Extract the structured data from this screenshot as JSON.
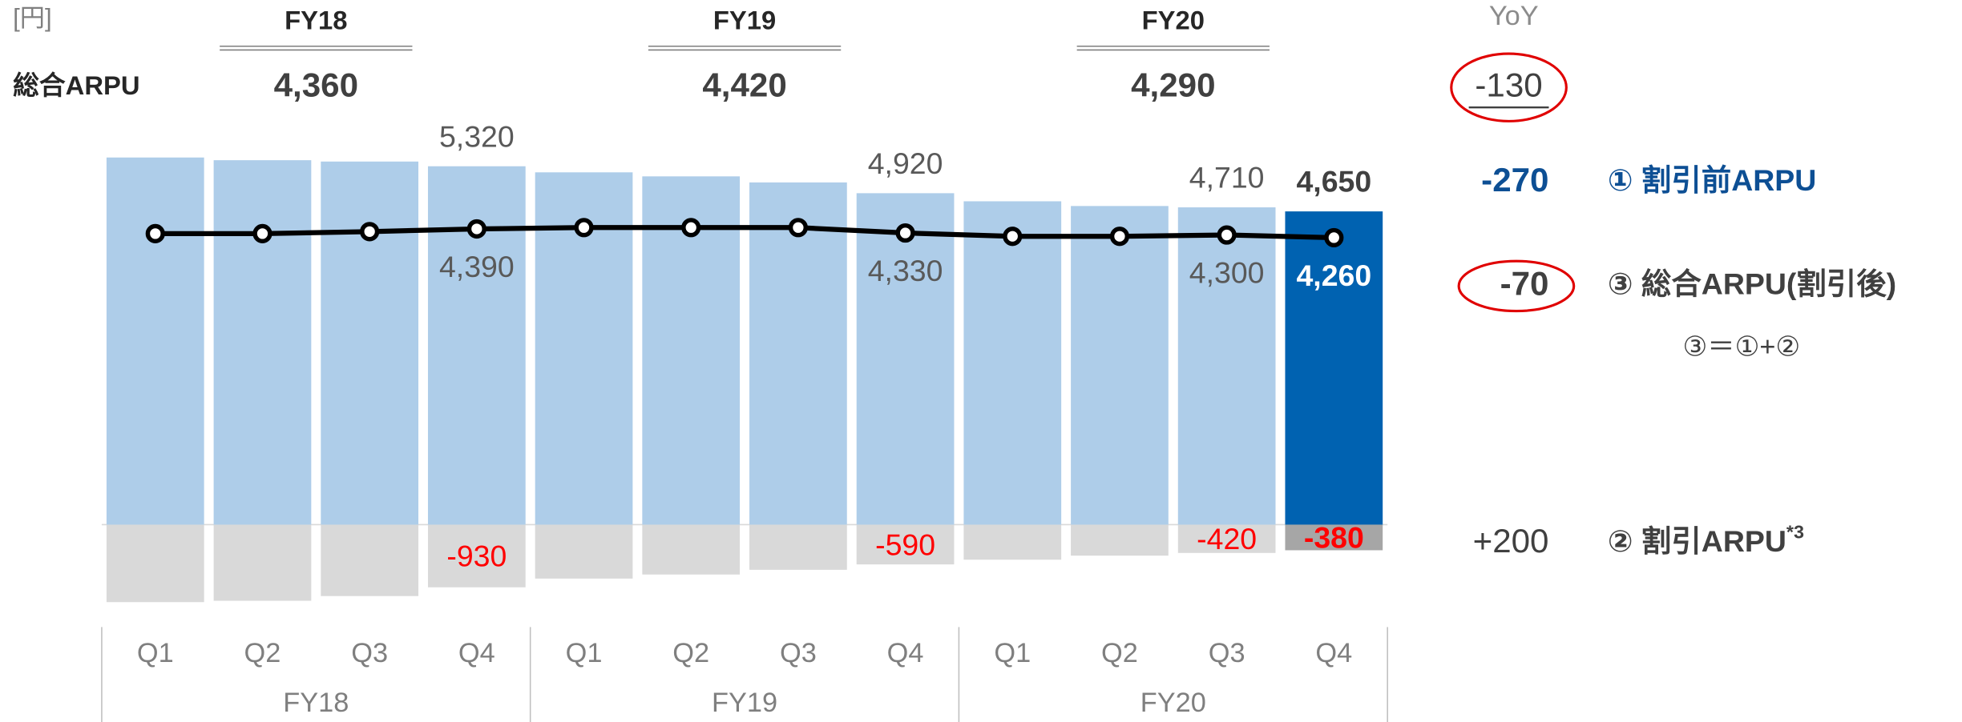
{
  "chart_data": {
    "type": "bar",
    "unit": "[円]",
    "categories": [
      "Q1",
      "Q2",
      "Q3",
      "Q4",
      "Q1",
      "Q2",
      "Q3",
      "Q4",
      "Q1",
      "Q2",
      "Q3",
      "Q4"
    ],
    "group_labels": [
      "FY18",
      "FY19",
      "FY20"
    ],
    "annual_row_label": "総合ARPU",
    "annual_values": [
      4360,
      4420,
      4290
    ],
    "annual_value_labels": [
      "4,360",
      "4,420",
      "4,290"
    ],
    "yoy_title": "YoY",
    "yoy_total": {
      "value": -130,
      "label": "-130"
    },
    "ylim": [
      -1200,
      5600
    ],
    "series": [
      {
        "name": "① 割引前ARPU",
        "type": "bar",
        "colors": [
          "#aecde9",
          "#aecde9",
          "#aecde9",
          "#aecde9",
          "#aecde9",
          "#aecde9",
          "#aecde9",
          "#aecde9",
          "#aecde9",
          "#aecde9",
          "#aecde9",
          "#0062b1"
        ],
        "values": [
          5450,
          5410,
          5390,
          5320,
          5230,
          5170,
          5080,
          4920,
          4800,
          4730,
          4710,
          4650
        ],
        "value_labels": [
          null,
          null,
          null,
          "5,320",
          null,
          null,
          null,
          "4,920",
          null,
          null,
          "4,710",
          "4,650"
        ],
        "yoy": {
          "value": -270,
          "label": "-270"
        }
      },
      {
        "name": "② 割引ARPU",
        "name_note": "*3",
        "type": "bar",
        "colors": [
          "#d9d9d9",
          "#d9d9d9",
          "#d9d9d9",
          "#d9d9d9",
          "#d9d9d9",
          "#d9d9d9",
          "#d9d9d9",
          "#d9d9d9",
          "#d9d9d9",
          "#d9d9d9",
          "#d9d9d9",
          "#a6a6a6"
        ],
        "values": [
          -1150,
          -1130,
          -1060,
          -930,
          -800,
          -740,
          -670,
          -590,
          -520,
          -460,
          -420,
          -380
        ],
        "value_labels": [
          null,
          null,
          null,
          "-930",
          null,
          null,
          null,
          "-590",
          null,
          null,
          "-420",
          "-380"
        ],
        "yoy": {
          "value": 200,
          "label": "+200"
        }
      },
      {
        "name": "③ 総合ARPU(割引後)",
        "type": "line",
        "color": "#000000",
        "values": [
          4320,
          4320,
          4350,
          4390,
          4410,
          4410,
          4410,
          4330,
          4280,
          4280,
          4300,
          4260
        ],
        "value_labels": [
          null,
          null,
          null,
          "4,390",
          null,
          null,
          null,
          "4,330",
          null,
          null,
          "4,300",
          "4,260"
        ],
        "yoy": {
          "value": -70,
          "label": "-70"
        }
      }
    ],
    "formula_note": "③＝①+②"
  }
}
